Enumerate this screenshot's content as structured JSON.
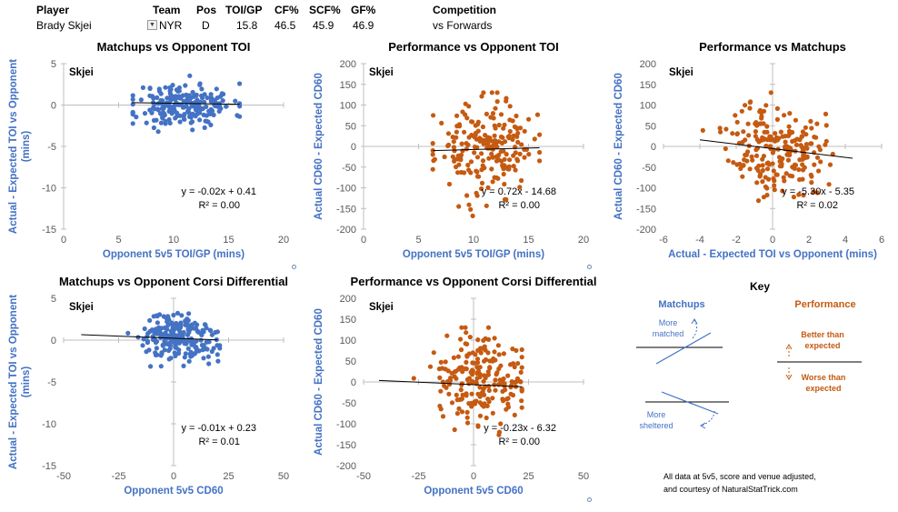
{
  "header": {
    "labels": {
      "player": "Player",
      "team": "Team",
      "pos": "Pos",
      "toi": "TOI/GP",
      "cf": "CF%",
      "scf": "SCF%",
      "gf": "GF%",
      "competition": "Competition"
    },
    "values": {
      "player": "Brady Skjei",
      "team": "NYR",
      "pos": "D",
      "toi": "15.8",
      "cf": "46.5",
      "scf": "45.9",
      "gf": "46.9",
      "competition": "vs Forwards"
    }
  },
  "colors": {
    "blue": "#4472C4",
    "orange": "#C55A11",
    "axis": "#bfbfbf"
  },
  "chart_data": [
    {
      "id": "c1",
      "type": "scatter",
      "title": "Matchups vs Opponent TOI",
      "xlabel": "Opponent 5v5 TOI/GP (mins)",
      "ylabel": "Actual - Expected TOI vs Opponent (mins)",
      "xlim": [
        0,
        20
      ],
      "ylim": [
        -15,
        5
      ],
      "xticks": [
        0,
        5,
        10,
        15,
        20
      ],
      "yticks": [
        -15,
        -10,
        -5,
        0,
        5
      ],
      "cross_x": 0,
      "cross_y": 0,
      "series_label": "Skjei",
      "color": "blue",
      "eq": "y = -0.02x + 0.41",
      "r2": "R² = 0.00",
      "trend": {
        "slope": -0.02,
        "intercept": 0.41,
        "x0": 6.2,
        "x1": 16
      },
      "cloud": {
        "seed": 11,
        "n": 220,
        "xm": 11,
        "xs": 2.2,
        "xmin": 6.3,
        "xmax": 16,
        "ym": 0,
        "ys": 1.3,
        "ymin": -4,
        "ymax": 4.5,
        "slope": 0
      }
    },
    {
      "id": "c2",
      "type": "scatter",
      "title": "Performance vs Opponent TOI",
      "xlabel": "Opponent 5v5 TOI/GP (mins)",
      "ylabel": "Actual CD60 - Expected CD60",
      "xlim": [
        0,
        20
      ],
      "ylim": [
        -200,
        200
      ],
      "xticks": [
        0,
        5,
        10,
        15,
        20
      ],
      "yticks": [
        -200,
        -150,
        -100,
        -50,
        0,
        50,
        100,
        150,
        200
      ],
      "cross_x": 0,
      "cross_y": 0,
      "series_label": "Skjei",
      "color": "orange",
      "eq": "y = 0.72x - 14.68",
      "r2": "R² = 0.00",
      "trend": {
        "slope": 0.72,
        "intercept": -14.68,
        "x0": 6.3,
        "x1": 16
      },
      "cloud": {
        "seed": 23,
        "n": 210,
        "xm": 11,
        "xs": 2.2,
        "xmin": 6.3,
        "xmax": 16,
        "ym": -5,
        "ys": 55,
        "ymin": -195,
        "ymax": 130,
        "slope": 0
      }
    },
    {
      "id": "c3",
      "type": "scatter",
      "title": "Performance vs Matchups",
      "xlabel": "Actual - Expected TOI vs Opponent (mins)",
      "ylabel": "Actual CD60 - Expected CD60",
      "xlim": [
        -6,
        6
      ],
      "ylim": [
        -200,
        200
      ],
      "xticks": [
        -6,
        -4,
        -2,
        0,
        2,
        4,
        6
      ],
      "yticks": [
        -200,
        -150,
        -100,
        -50,
        0,
        50,
        100,
        150,
        200
      ],
      "cross_x": 0,
      "cross_y": 0,
      "series_label": "Skjei",
      "color": "orange",
      "eq": "y = -5.30x - 5.35",
      "r2": "R² = 0.02",
      "trend": {
        "slope": -5.3,
        "intercept": -5.35,
        "x0": -4,
        "x1": 4.4
      },
      "cloud": {
        "seed": 37,
        "n": 220,
        "xm": 0.2,
        "xs": 1.3,
        "xmin": -4,
        "xmax": 4.4,
        "ym": -5,
        "ys": 55,
        "ymin": -195,
        "ymax": 130,
        "slope": -5.3
      }
    },
    {
      "id": "c4",
      "type": "scatter",
      "title": "Matchups vs Opponent Corsi Differential",
      "xlabel": "Opponent 5v5 CD60",
      "ylabel": "Actual - Expected TOI vs Opponent (mins)",
      "xlim": [
        -50,
        50
      ],
      "ylim": [
        -15,
        5
      ],
      "xticks": [
        -50,
        -25,
        0,
        25,
        50
      ],
      "yticks": [
        -15,
        -10,
        -5,
        0,
        5
      ],
      "cross_x": 0,
      "cross_y": 0,
      "series_label": "Skjei",
      "color": "blue",
      "eq": "y = -0.01x + 0.23",
      "r2": "R² = 0.01",
      "trend": {
        "slope": -0.01,
        "intercept": 0.23,
        "x0": -42,
        "x1": 20
      },
      "cloud": {
        "seed": 51,
        "n": 230,
        "xm": 2,
        "xs": 9,
        "xmin": -42,
        "xmax": 21,
        "ym": 0.2,
        "ys": 1.4,
        "ymin": -4,
        "ymax": 4.5,
        "slope": -0.01
      }
    },
    {
      "id": "c5",
      "type": "scatter",
      "title": "Performance vs Opponent Corsi Differential",
      "xlabel": "Opponent 5v5 CD60",
      "ylabel": "Actual CD60 - Expected CD60",
      "xlim": [
        -50,
        50
      ],
      "ylim": [
        -200,
        200
      ],
      "xticks": [
        -50,
        -25,
        0,
        25,
        50
      ],
      "yticks": [
        -200,
        -150,
        -100,
        -50,
        0,
        50,
        100,
        150,
        200
      ],
      "cross_x": 0,
      "cross_y": 0,
      "series_label": "Skjei",
      "color": "orange",
      "eq": "y = -0.23x - 6.32",
      "r2": "R² = 0.00",
      "trend": {
        "slope": -0.23,
        "intercept": -6.32,
        "x0": -43,
        "x1": 22
      },
      "cloud": {
        "seed": 67,
        "n": 210,
        "xm": 2,
        "xs": 10,
        "xmin": -43,
        "xmax": 22,
        "ym": -5,
        "ys": 55,
        "ymin": -195,
        "ymax": 130,
        "slope": -0.23
      }
    }
  ],
  "key": {
    "title": "Key",
    "matchups": "Matchups",
    "performance": "Performance",
    "more_matched": "More\nmatched",
    "more_sheltered": "More\nsheltered",
    "better": "Better than\nexpected",
    "worse": "Worse than\nexpected"
  },
  "footer": {
    "line1": "All data at 5v5, score and venue adjusted,",
    "line2": "and courtesy of NaturalStatTrick.com"
  }
}
